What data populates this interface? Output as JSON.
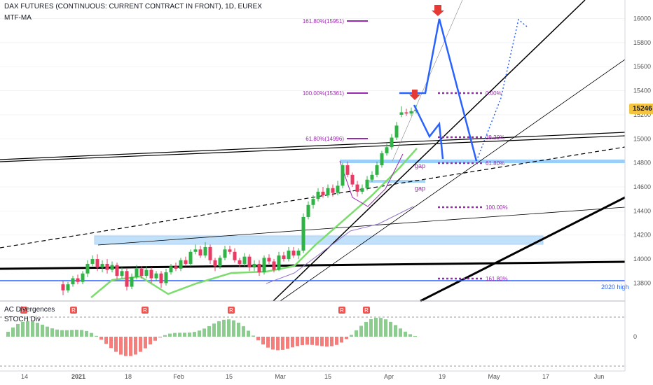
{
  "header": {
    "symbol_title": "DAX FUTURES (CONTINUOUS: CURRENT CONTRACT IN FRONT), 1D, EUREX",
    "indicator": "MTF-MA"
  },
  "sub_header": {
    "line1": "AC Divergences",
    "line2": "STOCH Div"
  },
  "colors": {
    "bull": "#2fb344",
    "bear": "#e83b63",
    "fib": "#9c27b0",
    "blue": "#2962ff",
    "zone": "#90caf9",
    "ma_green": "#7ddc6e",
    "ma_purple": "#9575cd",
    "osc_green": "#66bb6a",
    "osc_red": "#ef5350",
    "price_tag": "#f5c542"
  },
  "chart_data": {
    "type": "candlestick",
    "title": "DAX FUTURES (CONTINUOUS: CURRENT CONTRACT IN FRONT), 1D, EUREX",
    "last_price": "15246",
    "y_ticks": [
      "16000",
      "15800",
      "15600",
      "15400",
      "15200",
      "15000",
      "14800",
      "14600",
      "14400",
      "14200",
      "14000",
      "13800"
    ],
    "x_ticks": [
      "14",
      "2021",
      "18",
      "Feb",
      "15",
      "Mar",
      "15",
      "Apr",
      "19",
      "May",
      "17",
      "Jun"
    ],
    "fib_labels": [
      {
        "text": "161.80%(15951)",
        "price": 15951,
        "side": "left"
      },
      {
        "text": "100.00%(15361)",
        "price": 15361,
        "side": "left"
      },
      {
        "text": "61.80%(14996)",
        "price": 14996,
        "side": "left"
      },
      {
        "text": "0.00%",
        "price": 15363,
        "side": "right"
      },
      {
        "text": "38.20%",
        "price": 14997,
        "side": "right"
      },
      {
        "text": "61.80%",
        "price": 14790,
        "side": "right"
      },
      {
        "text": "100.00%",
        "price": 14430,
        "side": "right"
      },
      {
        "text": "161.80%",
        "price": 13840,
        "side": "right"
      }
    ],
    "annotations": [
      "gap",
      "gap",
      "2020 high"
    ],
    "oscillator_tick": "0",
    "oscillator_markers": [
      "R",
      "R",
      "R",
      "R",
      "R",
      "R"
    ]
  }
}
